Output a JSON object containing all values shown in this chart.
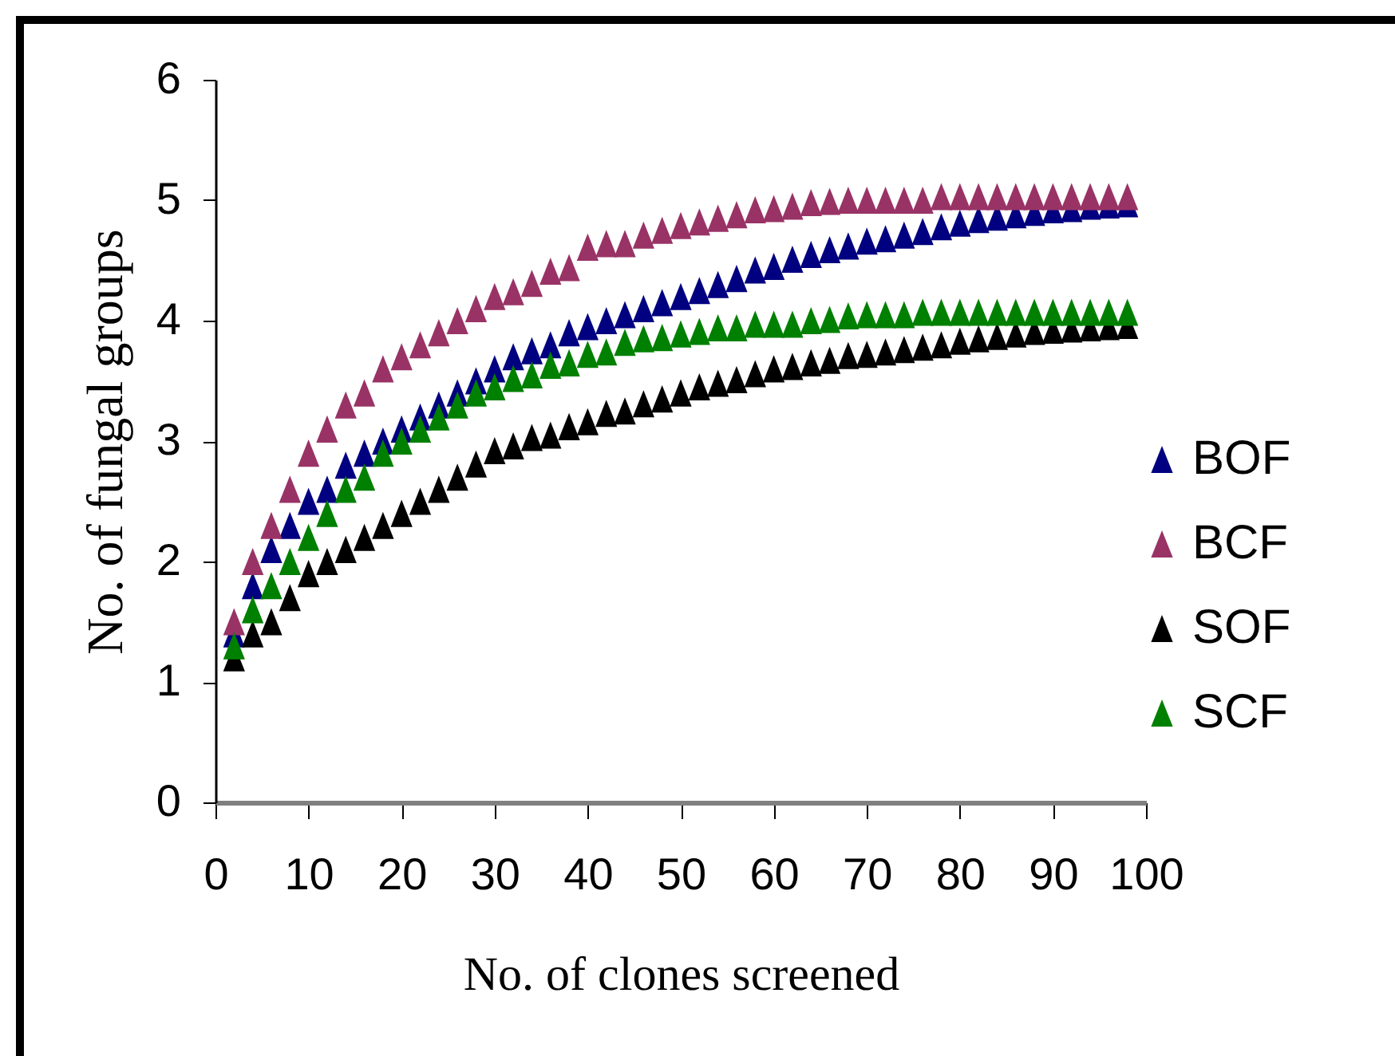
{
  "chart_data": {
    "type": "scatter",
    "xlabel": "No. of clones screened",
    "ylabel": "No. of fungal groups",
    "x": [
      2,
      4,
      6,
      8,
      10,
      12,
      14,
      16,
      18,
      20,
      22,
      24,
      26,
      28,
      30,
      32,
      34,
      36,
      38,
      40,
      42,
      44,
      46,
      48,
      50,
      52,
      54,
      56,
      58,
      60,
      62,
      64,
      66,
      68,
      70,
      72,
      74,
      76,
      78,
      80,
      82,
      84,
      86,
      88,
      90,
      92,
      94,
      96,
      98
    ],
    "series": [
      {
        "name": "BOF",
        "color": "#000080",
        "values": [
          1.4,
          1.8,
          2.1,
          2.3,
          2.5,
          2.6,
          2.8,
          2.9,
          3.0,
          3.1,
          3.2,
          3.3,
          3.4,
          3.5,
          3.6,
          3.7,
          3.75,
          3.8,
          3.9,
          3.95,
          4.0,
          4.05,
          4.1,
          4.15,
          4.2,
          4.25,
          4.3,
          4.35,
          4.42,
          4.45,
          4.51,
          4.55,
          4.59,
          4.62,
          4.66,
          4.68,
          4.71,
          4.74,
          4.78,
          4.81,
          4.84,
          4.86,
          4.88,
          4.9,
          4.92,
          4.93,
          4.95,
          4.96,
          4.97
        ]
      },
      {
        "name": "BCF",
        "color": "#993366",
        "values": [
          1.5,
          2.0,
          2.3,
          2.6,
          2.9,
          3.1,
          3.3,
          3.4,
          3.6,
          3.7,
          3.8,
          3.9,
          4.0,
          4.1,
          4.2,
          4.24,
          4.31,
          4.41,
          4.44,
          4.61,
          4.64,
          4.64,
          4.71,
          4.75,
          4.79,
          4.82,
          4.85,
          4.88,
          4.92,
          4.93,
          4.95,
          4.98,
          4.99,
          5.0,
          5.0,
          5.0,
          5.0,
          5.0,
          5.03,
          5.03,
          5.03,
          5.03,
          5.03,
          5.03,
          5.03,
          5.03,
          5.03,
          5.03,
          5.03
        ]
      },
      {
        "name": "SOF",
        "color": "#000000",
        "values": [
          1.2,
          1.4,
          1.5,
          1.7,
          1.9,
          2.0,
          2.1,
          2.2,
          2.3,
          2.4,
          2.5,
          2.6,
          2.7,
          2.81,
          2.92,
          2.96,
          3.03,
          3.05,
          3.12,
          3.16,
          3.23,
          3.25,
          3.31,
          3.35,
          3.4,
          3.45,
          3.48,
          3.51,
          3.56,
          3.6,
          3.62,
          3.65,
          3.67,
          3.71,
          3.72,
          3.74,
          3.76,
          3.78,
          3.8,
          3.83,
          3.85,
          3.87,
          3.89,
          3.91,
          3.92,
          3.93,
          3.94,
          3.95,
          3.96
        ]
      },
      {
        "name": "SCF",
        "color": "#008000",
        "values": [
          1.3,
          1.6,
          1.8,
          2.0,
          2.2,
          2.4,
          2.6,
          2.7,
          2.9,
          3.0,
          3.1,
          3.2,
          3.3,
          3.4,
          3.45,
          3.52,
          3.55,
          3.63,
          3.65,
          3.72,
          3.74,
          3.82,
          3.85,
          3.86,
          3.89,
          3.91,
          3.94,
          3.94,
          3.97,
          3.97,
          3.97,
          4.0,
          4.01,
          4.04,
          4.05,
          4.05,
          4.05,
          4.07,
          4.07,
          4.07,
          4.07,
          4.07,
          4.07,
          4.07,
          4.07,
          4.07,
          4.07,
          4.07,
          4.07
        ]
      }
    ],
    "xlim": [
      0,
      100
    ],
    "xticks": [
      0,
      10,
      20,
      30,
      40,
      50,
      60,
      70,
      80,
      90,
      100
    ],
    "ylim": [
      0,
      6
    ],
    "yticks": [
      0,
      1,
      2,
      3,
      4,
      5,
      6
    ],
    "grid": false,
    "legend": "right",
    "marker": "triangle"
  }
}
